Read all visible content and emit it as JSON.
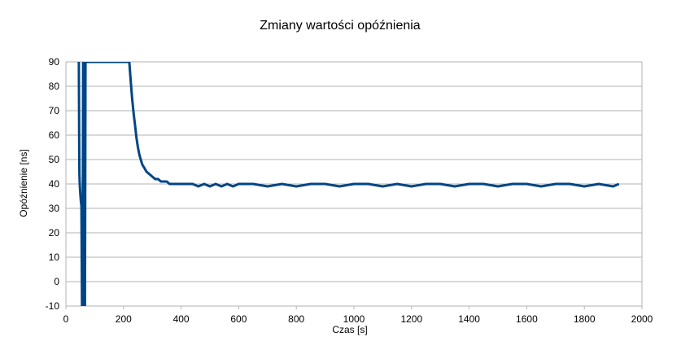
{
  "chart_data": {
    "type": "line",
    "title": "Zmiany wartości opóźnienia",
    "xlabel": "Czas [s]",
    "ylabel": "Opóźnienie [ns]",
    "xlim": [
      0,
      2000
    ],
    "ylim": [
      -10,
      90
    ],
    "x_ticks": [
      0,
      200,
      400,
      600,
      800,
      1000,
      1200,
      1400,
      1600,
      1800,
      2000
    ],
    "y_ticks": [
      -10,
      0,
      10,
      20,
      30,
      40,
      50,
      60,
      70,
      80,
      90
    ],
    "grid": "horizontal",
    "legend": "none",
    "series": [
      {
        "color": "#004586",
        "x": [
          45,
          46,
          47,
          48,
          50,
          52,
          54,
          56,
          58,
          60,
          62,
          64,
          66,
          68,
          70,
          220,
          225,
          230,
          235,
          240,
          245,
          250,
          255,
          260,
          265,
          270,
          280,
          290,
          300,
          310,
          320,
          330,
          340,
          350,
          360,
          380,
          400,
          420,
          440,
          460,
          480,
          500,
          520,
          540,
          560,
          580,
          600,
          650,
          700,
          750,
          800,
          850,
          900,
          950,
          1000,
          1050,
          1100,
          1150,
          1200,
          1250,
          1300,
          1350,
          1400,
          1450,
          1500,
          1550,
          1600,
          1650,
          1700,
          1750,
          1800,
          1850,
          1900,
          1920
        ],
        "y": [
          90,
          60,
          44,
          40,
          36,
          33,
          31,
          -10,
          -10,
          90,
          90,
          -10,
          -10,
          90,
          90,
          90,
          82,
          75,
          69,
          64,
          59,
          55,
          52,
          50,
          48,
          47,
          45,
          44,
          43,
          42,
          42,
          41,
          41,
          41,
          40,
          40,
          40,
          40,
          40,
          39,
          40,
          39,
          40,
          39,
          40,
          39,
          40,
          40,
          39,
          40,
          39,
          40,
          40,
          39,
          40,
          40,
          39,
          40,
          39,
          40,
          40,
          39,
          40,
          40,
          39,
          40,
          40,
          39,
          40,
          40,
          39,
          40,
          39,
          40
        ]
      }
    ]
  }
}
